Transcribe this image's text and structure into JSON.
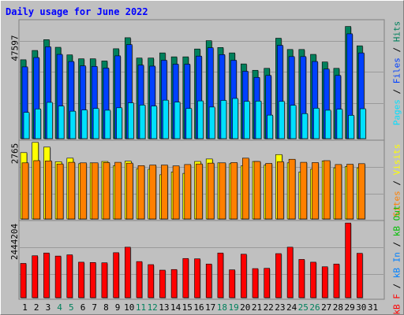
{
  "title": "Daily usage for June 2022",
  "colors": {
    "background": "#c0c0c0",
    "title": "#0000ff",
    "hits": "#00805c",
    "files": "#0040ff",
    "pages": "#00e0ff",
    "visits": "#ffff00",
    "sites": "#ff8000",
    "kbin": "#0080ff",
    "kbout": "#00c000",
    "kbf": "#ff0000",
    "separator": "#000000",
    "weekend_day": "#00805c",
    "weekday_day": "#000000"
  },
  "axis_labels": {
    "hits_panel_max": "47597",
    "visits_panel_max": "2765",
    "kbytes_panel_max": "2444204"
  },
  "legend": {
    "top": [
      {
        "text": "Pages",
        "color": "#00e0ff"
      },
      {
        "text": " / ",
        "color": "#000000"
      },
      {
        "text": "Files",
        "color": "#0040ff"
      },
      {
        "text": " / ",
        "color": "#000000"
      },
      {
        "text": "Hits",
        "color": "#00805c"
      }
    ],
    "middle": [
      {
        "text": "Sites",
        "color": "#ff8000"
      },
      {
        "text": " / ",
        "color": "#000000"
      },
      {
        "text": "Visits",
        "color": "#ffff00"
      }
    ],
    "bottom": [
      {
        "text": "kB F",
        "color": "#ff0000"
      },
      {
        "text": " / ",
        "color": "#000000"
      },
      {
        "text": "kB In",
        "color": "#0080ff"
      },
      {
        "text": " / ",
        "color": "#000000"
      },
      {
        "text": "kB Out",
        "color": "#00c000"
      }
    ]
  },
  "chart_data": {
    "type": "bar",
    "title": "Daily usage for June 2022",
    "categories": [
      "1",
      "2",
      "3",
      "4",
      "5",
      "6",
      "7",
      "8",
      "9",
      "10",
      "11",
      "12",
      "13",
      "14",
      "15",
      "16",
      "17",
      "18",
      "19",
      "20",
      "21",
      "22",
      "23",
      "24",
      "25",
      "26",
      "27",
      "28",
      "29",
      "30",
      "31"
    ],
    "weekend_days": [
      "4",
      "5",
      "11",
      "12",
      "18",
      "19",
      "25",
      "26"
    ],
    "panels": [
      {
        "name": "hits_files_pages",
        "ylim": [
          0,
          47597
        ],
        "series": [
          {
            "name": "Hits",
            "values": [
              32200,
              36000,
              40400,
              37300,
              34200,
              32600,
              32600,
              31700,
              36700,
              41200,
              32900,
              32900,
              35000,
              33400,
              33400,
              36600,
              40000,
              37200,
              35000,
              30500,
              27900,
              28700,
              41000,
              36400,
              36400,
              34400,
              31300,
              28700,
              45800,
              37900,
              null
            ]
          },
          {
            "name": "Files",
            "values": [
              29300,
              33100,
              37500,
              34400,
              31500,
              29700,
              29500,
              28800,
              33800,
              38400,
              30000,
              29600,
              32000,
              30400,
              30400,
              33700,
              37100,
              34300,
              32000,
              27500,
              25000,
              25800,
              38100,
              33500,
              33500,
              31500,
              28400,
              25800,
              42800,
              35000,
              null
            ]
          },
          {
            "name": "Pages",
            "values": [
              10700,
              12100,
              14800,
              13300,
              11200,
              11700,
              12300,
              11600,
              12600,
              14600,
              13700,
              13300,
              15700,
              14900,
              12300,
              15400,
              12900,
              15600,
              16400,
              15200,
              15300,
              9600,
              15200,
              13600,
              10200,
              12400,
              11600,
              12000,
              9500,
              12200,
              null
            ]
          }
        ]
      },
      {
        "name": "visits_sites",
        "ylim": [
          0,
          2765
        ],
        "series": [
          {
            "name": "Visits",
            "values": [
              2400,
              2770,
              2600,
              2070,
              2200,
              2000,
              2030,
              2080,
              1930,
              2090,
              1820,
              1800,
              1600,
              1700,
              1650,
              2080,
              2170,
              2030,
              2000,
              1920,
              2080,
              1950,
              2330,
              2030,
              1700,
              1800,
              2100,
              1850,
              1900,
              1850,
              null
            ]
          },
          {
            "name": "Sites",
            "values": [
              2030,
              2110,
              2100,
              1990,
              2050,
              2030,
              2030,
              2040,
              2050,
              2020,
              1930,
              1950,
              1950,
              1920,
              1970,
              1990,
              2020,
              2030,
              2040,
              2200,
              2080,
              2010,
              2070,
              2160,
              2050,
              2040,
              2110,
              1970,
              1980,
              2000,
              null
            ]
          }
        ]
      },
      {
        "name": "kbytes",
        "ylim": [
          0,
          2444204
        ],
        "series": [
          {
            "name": "kB F",
            "values": [
              1120000,
              1370000,
              1460000,
              1360000,
              1400000,
              1160000,
              1150000,
              1140000,
              1470000,
              1650000,
              1180000,
              1080000,
              900000,
              920000,
              1280000,
              1270000,
              1100000,
              1460000,
              910000,
              1420000,
              950000,
              960000,
              1440000,
              1650000,
              1250000,
              1160000,
              1010000,
              1100000,
              2440000,
              1450000,
              null
            ]
          }
        ]
      }
    ]
  }
}
